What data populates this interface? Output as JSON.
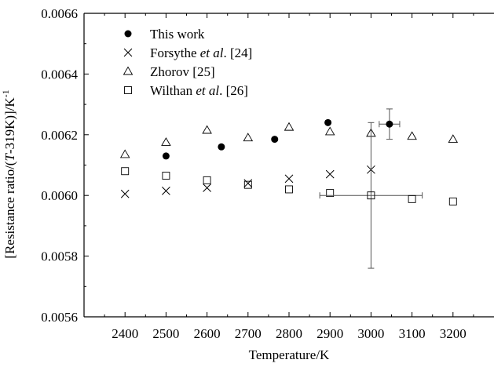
{
  "chart_data": {
    "type": "scatter",
    "title": "",
    "xlabel": "Temperature/K",
    "ylabel_parts": [
      "[Resistance ratio/(",
      "T",
      "-319K)]/K",
      "-1"
    ],
    "xlim": [
      2300,
      3300
    ],
    "ylim": [
      0.0056,
      0.0066
    ],
    "x_ticks": [
      2400,
      2500,
      2600,
      2700,
      2800,
      2900,
      3000,
      3100,
      3200
    ],
    "x_tick_labels": [
      "2400",
      "2500",
      "2600",
      "2700",
      "2800",
      "2900",
      "3000",
      "3100",
      "3200"
    ],
    "y_ticks": [
      0.0056,
      0.0058,
      0.006,
      0.0062,
      0.0064,
      0.0066
    ],
    "y_tick_labels": [
      "0.0056",
      "0.0058",
      "0.0060",
      "0.0062",
      "0.0064",
      "0.0066"
    ],
    "grid": false,
    "legend_position": "top-left",
    "series": [
      {
        "name_parts": [
          "This work"
        ],
        "marker": "filled-circle",
        "points": [
          {
            "x": 2500,
            "y": 0.00613
          },
          {
            "x": 2635,
            "y": 0.00616
          },
          {
            "x": 2765,
            "y": 0.006185
          },
          {
            "x": 2895,
            "y": 0.00624
          },
          {
            "x": 3045,
            "y": 0.006235,
            "xerr": 25,
            "yerr": 5e-05
          }
        ]
      },
      {
        "name_parts": [
          "Forsythe ",
          "et al",
          ". [24]"
        ],
        "marker": "cross",
        "points": [
          {
            "x": 2400,
            "y": 0.006005
          },
          {
            "x": 2500,
            "y": 0.006015
          },
          {
            "x": 2600,
            "y": 0.006025
          },
          {
            "x": 2700,
            "y": 0.00604
          },
          {
            "x": 2800,
            "y": 0.006055
          },
          {
            "x": 2900,
            "y": 0.00607
          },
          {
            "x": 3000,
            "y": 0.006085
          }
        ]
      },
      {
        "name_parts": [
          "Zhorov [25]"
        ],
        "marker": "open-triangle",
        "points": [
          {
            "x": 2400,
            "y": 0.006135
          },
          {
            "x": 2500,
            "y": 0.006175
          },
          {
            "x": 2600,
            "y": 0.006215
          },
          {
            "x": 2700,
            "y": 0.00619
          },
          {
            "x": 2800,
            "y": 0.006225
          },
          {
            "x": 2900,
            "y": 0.00621
          },
          {
            "x": 3000,
            "y": 0.006205
          },
          {
            "x": 3100,
            "y": 0.006195
          },
          {
            "x": 3200,
            "y": 0.006185
          }
        ]
      },
      {
        "name_parts": [
          "Wilthan ",
          "et al",
          ". [26]"
        ],
        "marker": "open-square",
        "points": [
          {
            "x": 2400,
            "y": 0.00608
          },
          {
            "x": 2500,
            "y": 0.006065
          },
          {
            "x": 2600,
            "y": 0.00605
          },
          {
            "x": 2700,
            "y": 0.006035
          },
          {
            "x": 2800,
            "y": 0.00602
          },
          {
            "x": 2900,
            "y": 0.006008
          },
          {
            "x": 3000,
            "y": 0.006,
            "xerr": 125,
            "yerr": 0.00024
          },
          {
            "x": 3100,
            "y": 0.005988
          },
          {
            "x": 3200,
            "y": 0.00598
          }
        ]
      }
    ]
  }
}
